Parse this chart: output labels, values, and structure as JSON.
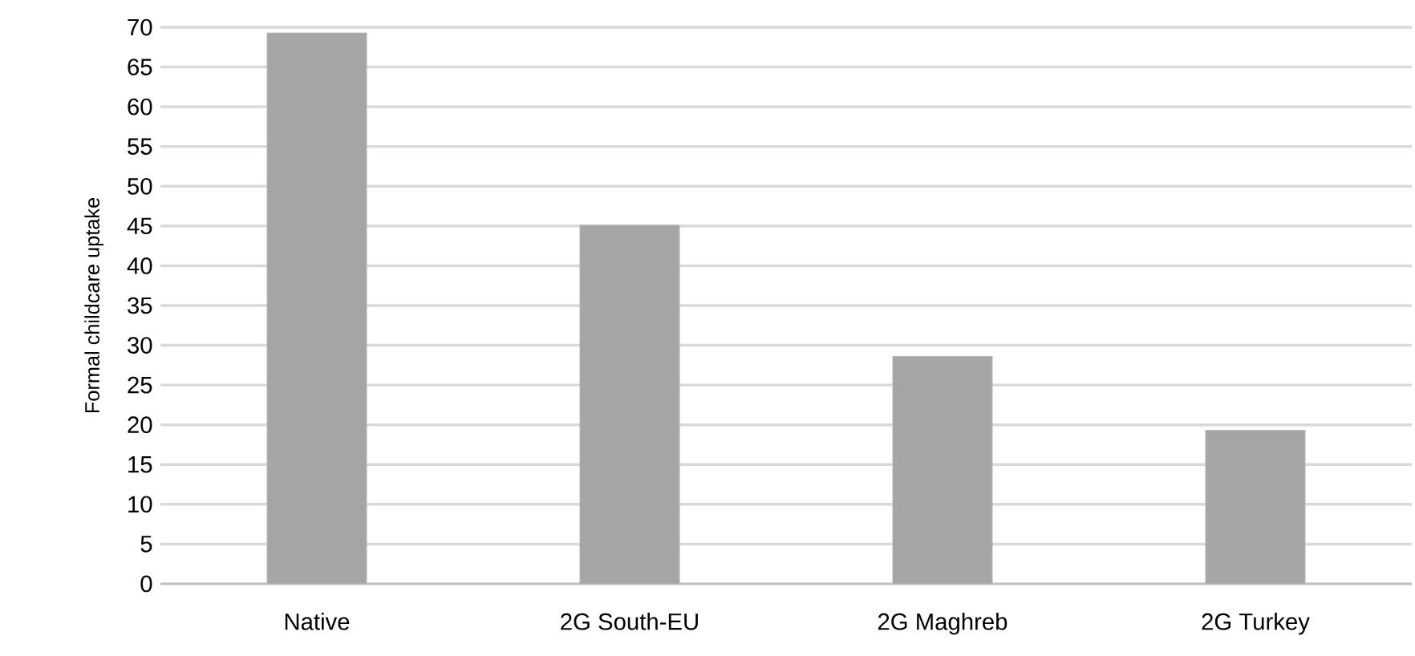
{
  "chart_data": {
    "type": "bar",
    "ylabel": "Formal childcare uptake",
    "categories": [
      "Native",
      "2G South-EU",
      "2G Maghreb",
      "2G Turkey"
    ],
    "values": [
      69.3,
      45.1,
      28.6,
      19.3
    ],
    "color": "#a5a5a5",
    "ylim": [
      0,
      70
    ],
    "yticks": [
      0,
      5,
      10,
      15,
      20,
      25,
      30,
      35,
      40,
      45,
      50,
      55,
      60,
      65,
      70
    ],
    "grid": "y"
  }
}
